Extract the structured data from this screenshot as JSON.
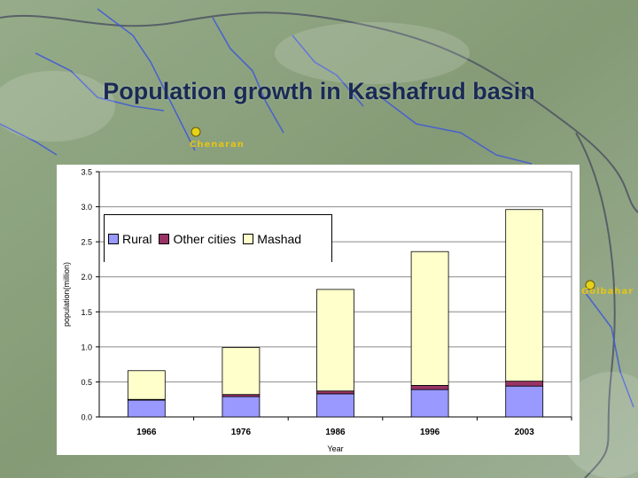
{
  "slide": {
    "title": "Population growth in Kashafrud basin",
    "map_labels": [
      "Chenaran",
      "Golbahar"
    ]
  },
  "chart_data": {
    "type": "bar",
    "stacked": true,
    "categories": [
      "1966",
      "1976",
      "1986",
      "1996",
      "2003"
    ],
    "series": [
      {
        "name": "Rural",
        "color": "#9999ff",
        "values": [
          0.24,
          0.29,
          0.33,
          0.39,
          0.44
        ]
      },
      {
        "name": "Other cities",
        "color": "#993366",
        "values": [
          0.01,
          0.03,
          0.04,
          0.06,
          0.07
        ]
      },
      {
        "name": "Mashad",
        "color": "#ffffcc",
        "values": [
          0.41,
          0.67,
          1.45,
          1.91,
          2.45
        ]
      }
    ],
    "title": "",
    "xlabel": "Year",
    "ylabel": "population(million)",
    "ylim": [
      0,
      3.5
    ],
    "yticks": [
      "0.0",
      "0.5",
      "1.0",
      "1.5",
      "2.0",
      "2.5",
      "3.0",
      "3.5"
    ],
    "grid": true,
    "legend_position": "top-left"
  }
}
